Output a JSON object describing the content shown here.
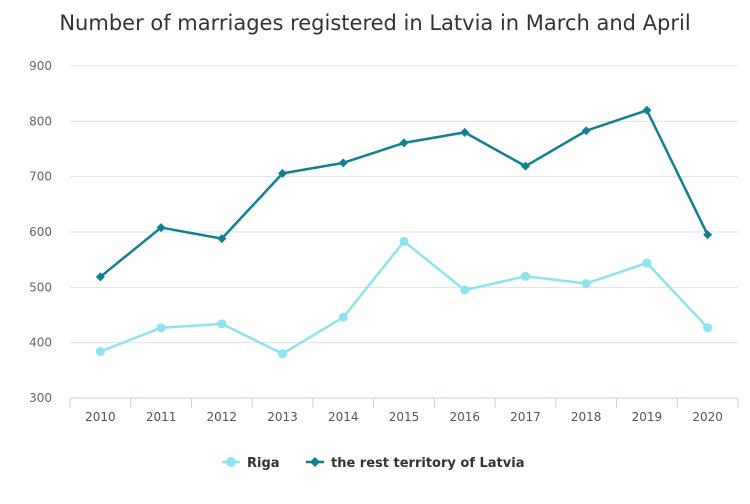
{
  "chart_data": {
    "type": "line",
    "title": "Number of marriages registered in Latvia in March and April",
    "xlabel": "",
    "ylabel": "",
    "categories": [
      "2010",
      "2011",
      "2012",
      "2013",
      "2014",
      "2015",
      "2016",
      "2017",
      "2018",
      "2019",
      "2020"
    ],
    "ylim": [
      300,
      900
    ],
    "yticks": [
      300,
      400,
      500,
      600,
      700,
      800,
      900
    ],
    "grid": true,
    "legend_position": "bottom-center",
    "series": [
      {
        "name": "Riga",
        "color": "#8fe3ee",
        "marker": "circle",
        "values": [
          384,
          427,
          434,
          380,
          446,
          583,
          495,
          520,
          507,
          544,
          427
        ]
      },
      {
        "name": "the rest territory of Latvia",
        "color": "#13808f",
        "marker": "diamond",
        "values": [
          519,
          608,
          588,
          706,
          725,
          761,
          780,
          719,
          783,
          820,
          595
        ]
      }
    ]
  }
}
